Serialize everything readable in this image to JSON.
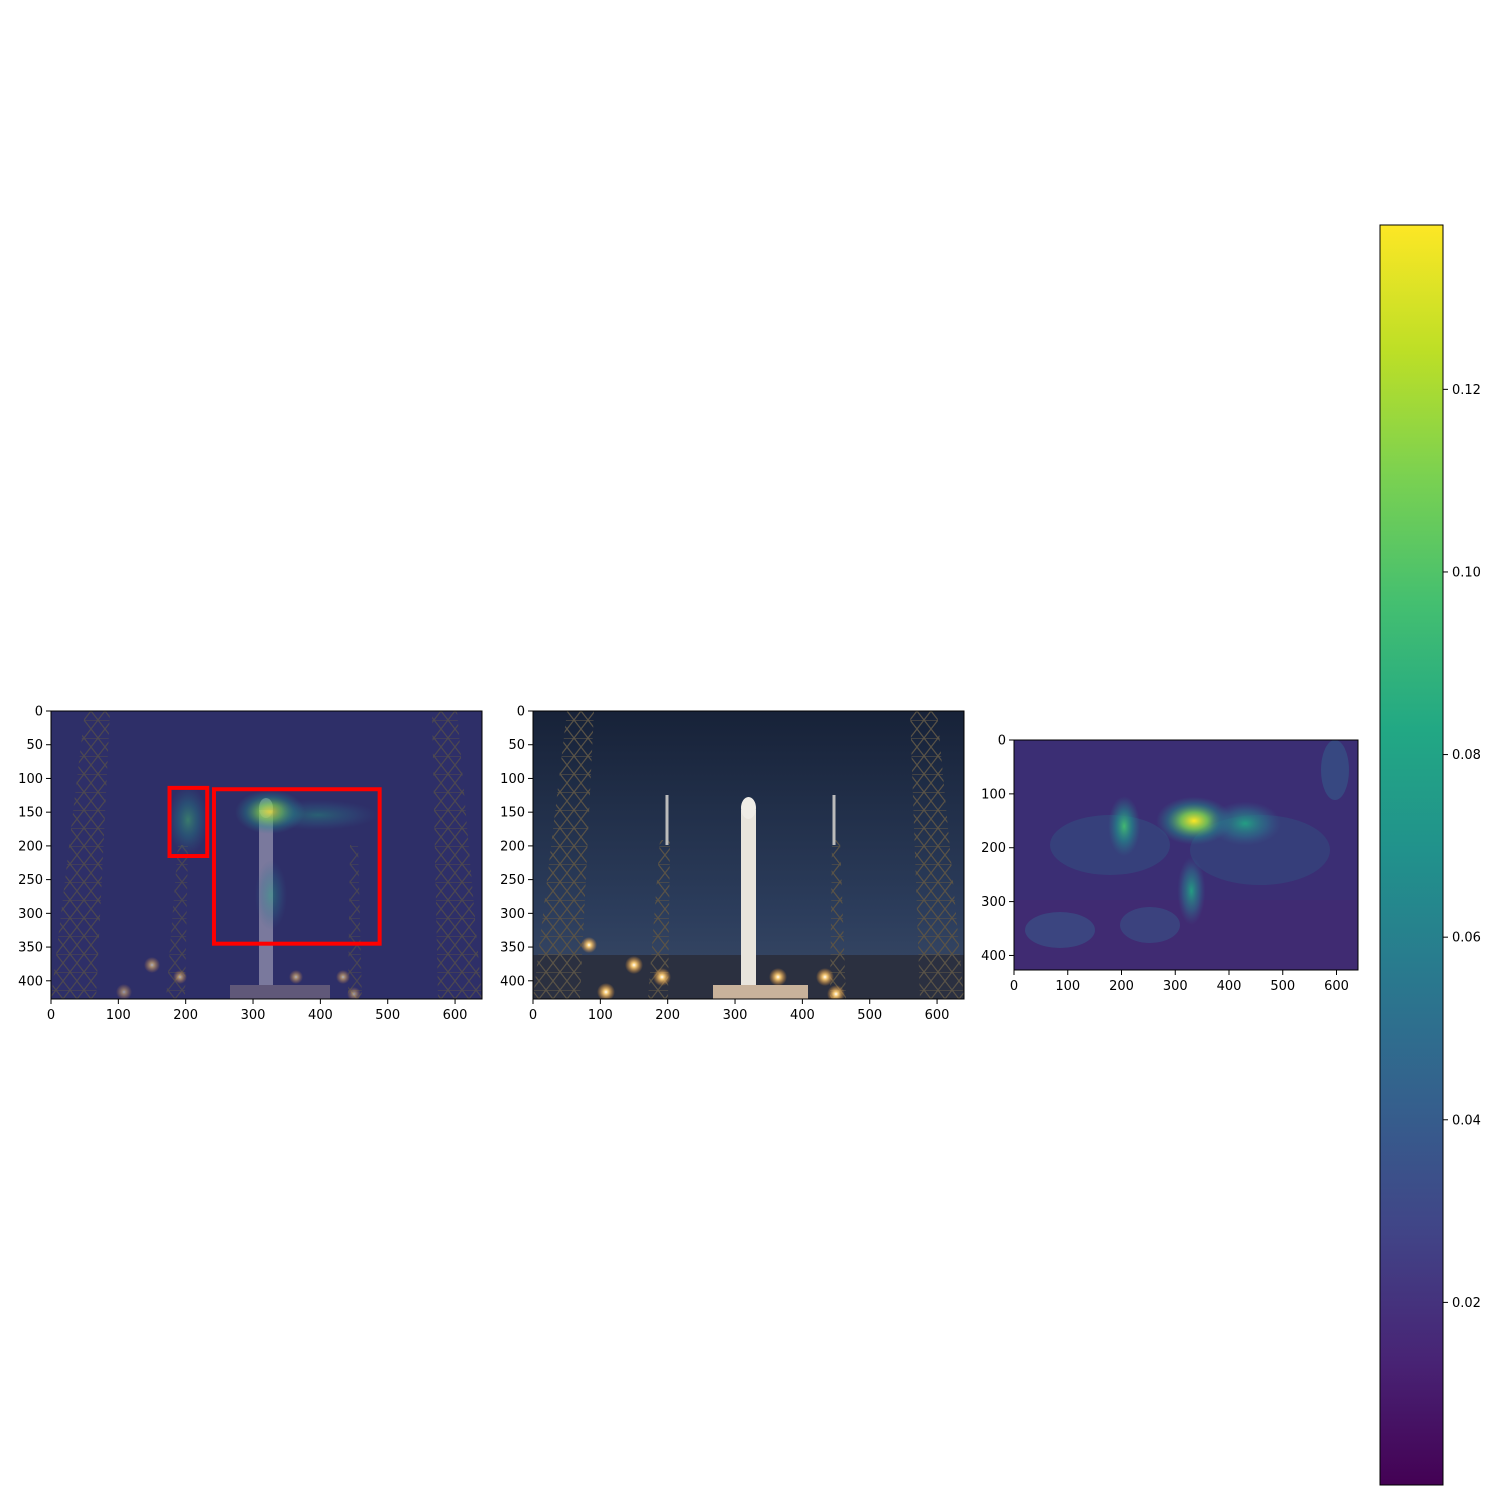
{
  "chart_data": [
    {
      "type": "heatmap",
      "panel": "overlay",
      "title": "",
      "xlabel": "",
      "ylabel": "",
      "xlim": [
        0,
        640
      ],
      "ylim": [
        427,
        0
      ],
      "x_ticks": [
        0,
        100,
        200,
        300,
        400,
        500,
        600
      ],
      "y_ticks": [
        0,
        50,
        100,
        150,
        200,
        250,
        300,
        350,
        400
      ],
      "grid": false,
      "boxes": [
        {
          "x0": 176,
          "y0": 114,
          "x1": 232,
          "y1": 215
        },
        {
          "x0": 242,
          "y0": 116,
          "x1": 488,
          "y1": 345
        }
      ],
      "box_color": "#ff0000"
    },
    {
      "type": "heatmap",
      "panel": "image",
      "title": "",
      "xlabel": "",
      "ylabel": "",
      "xlim": [
        0,
        640
      ],
      "ylim": [
        427,
        0
      ],
      "x_ticks": [
        0,
        100,
        200,
        300,
        400,
        500,
        600
      ],
      "y_ticks": [
        0,
        50,
        100,
        150,
        200,
        250,
        300,
        350,
        400
      ],
      "grid": false
    },
    {
      "type": "heatmap",
      "panel": "attention-map",
      "title": "",
      "xlabel": "",
      "ylabel": "",
      "xlim": [
        0,
        640
      ],
      "ylim": [
        427,
        0
      ],
      "x_ticks": [
        0,
        100,
        200,
        300,
        400,
        500,
        600
      ],
      "y_ticks": [
        0,
        100,
        200,
        300,
        400
      ],
      "grid": false,
      "hotspots": [
        {
          "x": 335,
          "y": 150,
          "value": 0.135
        },
        {
          "x": 205,
          "y": 160,
          "value": 0.095
        },
        {
          "x": 430,
          "y": 155,
          "value": 0.07
        },
        {
          "x": 330,
          "y": 280,
          "value": 0.07
        }
      ],
      "colorbar": {
        "colormap": "viridis",
        "range": [
          0.0,
          0.138
        ],
        "ticks": [
          "0.02",
          "0.04",
          "0.06",
          "0.08",
          "0.10",
          "0.12"
        ],
        "tick_values": [
          0.02,
          0.04,
          0.06,
          0.08,
          0.1,
          0.12
        ]
      }
    }
  ]
}
